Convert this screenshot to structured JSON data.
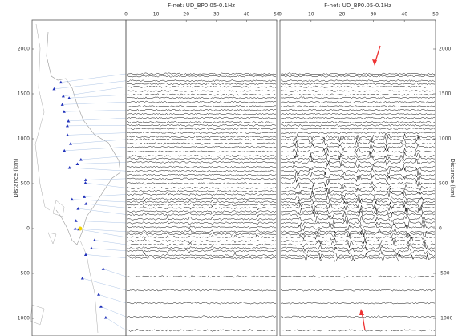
{
  "panels": [
    {
      "title": "F-net: UD_BP0.05-0.1Hz"
    },
    {
      "title": "F-net: UD_BP0.05-0.1Hz"
    }
  ],
  "y_axis": {
    "label": "Distance (km)",
    "ticks": [
      2000,
      1500,
      1000,
      500,
      0,
      -500,
      -1000
    ]
  },
  "x_axis": {
    "ticks": [
      0,
      10,
      20,
      30,
      40,
      50
    ]
  }
}
